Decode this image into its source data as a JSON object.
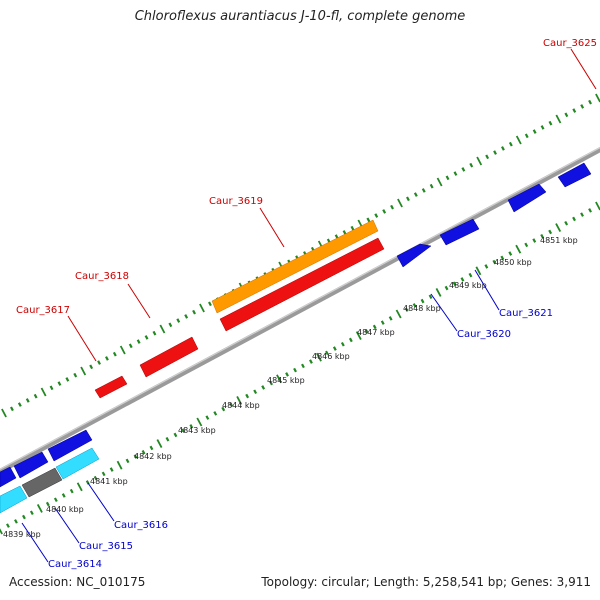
{
  "header": {
    "title": "Chloroflexus aurantiacus J-10-fl, complete genome"
  },
  "footer": {
    "accession": "Accession: NC_010175",
    "topology": "Topology: circular; Length: 5,258,541 bp; Genes: 3,911"
  },
  "colors": {
    "cds_forward": "#ee1111",
    "cds_reverse": "#1010e0",
    "rna": "#ff9900",
    "cyan": "#33ddff",
    "other": "#666666",
    "label_red": "#cc0000",
    "label_blue": "#0000cc",
    "backbone": "#888888",
    "ticks": "#228822"
  },
  "scale": {
    "tick_labels": [
      "4839 kbp",
      "4840 kbp",
      "4841 kbp",
      "4842 kbp",
      "4843 kbp",
      "4844 kbp",
      "4845 kbp",
      "4846 kbp",
      "4847 kbp",
      "4848 kbp",
      "4849 kbp",
      "4850 kbp",
      "4851 kbp"
    ]
  },
  "genes": {
    "caur_3617": "Caur_3617",
    "caur_3618": "Caur_3618",
    "caur_3619": "Caur_3619",
    "caur_3625": "Caur_3625",
    "caur_3620": "Caur_3620",
    "caur_3621": "Caur_3621",
    "caur_3616": "Caur_3616",
    "caur_3615": "Caur_3615",
    "caur_3614": "Caur_3614"
  }
}
